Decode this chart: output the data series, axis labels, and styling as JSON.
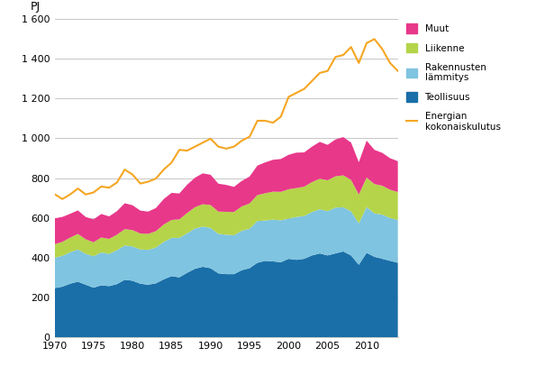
{
  "years": [
    1970,
    1971,
    1972,
    1973,
    1974,
    1975,
    1976,
    1977,
    1978,
    1979,
    1980,
    1981,
    1982,
    1983,
    1984,
    1985,
    1986,
    1987,
    1988,
    1989,
    1990,
    1991,
    1992,
    1993,
    1994,
    1995,
    1996,
    1997,
    1998,
    1999,
    2000,
    2001,
    2002,
    2003,
    2004,
    2005,
    2006,
    2007,
    2008,
    2009,
    2010,
    2011,
    2012,
    2013,
    2014
  ],
  "teollisuus": [
    248,
    255,
    270,
    280,
    265,
    250,
    262,
    258,
    268,
    290,
    285,
    270,
    265,
    272,
    292,
    308,
    302,
    325,
    345,
    355,
    348,
    322,
    318,
    318,
    338,
    348,
    375,
    385,
    382,
    378,
    395,
    390,
    395,
    412,
    422,
    412,
    422,
    432,
    412,
    365,
    425,
    405,
    395,
    385,
    375
  ],
  "rakennusten_lammitys": [
    152,
    155,
    158,
    162,
    155,
    158,
    165,
    162,
    170,
    172,
    172,
    172,
    175,
    180,
    188,
    192,
    198,
    198,
    202,
    202,
    202,
    198,
    198,
    195,
    198,
    198,
    210,
    202,
    210,
    210,
    202,
    215,
    215,
    218,
    222,
    222,
    230,
    222,
    222,
    208,
    230,
    218,
    222,
    215,
    215
  ],
  "liikenne": [
    68,
    70,
    73,
    78,
    73,
    70,
    75,
    75,
    78,
    82,
    82,
    80,
    80,
    82,
    87,
    90,
    93,
    102,
    107,
    112,
    115,
    112,
    115,
    117,
    122,
    127,
    130,
    137,
    140,
    143,
    147,
    145,
    147,
    150,
    153,
    155,
    157,
    160,
    157,
    145,
    148,
    147,
    145,
    142,
    140
  ],
  "muut": [
    130,
    125,
    120,
    118,
    112,
    115,
    118,
    113,
    118,
    130,
    125,
    115,
    112,
    116,
    128,
    136,
    130,
    142,
    148,
    155,
    152,
    140,
    135,
    126,
    128,
    135,
    148,
    155,
    160,
    165,
    173,
    178,
    172,
    178,
    185,
    178,
    185,
    192,
    188,
    162,
    185,
    172,
    165,
    158,
    155
  ],
  "kokonaiskulutus": [
    720,
    695,
    718,
    748,
    718,
    728,
    758,
    752,
    778,
    843,
    818,
    773,
    782,
    798,
    843,
    878,
    942,
    938,
    958,
    978,
    998,
    958,
    948,
    958,
    988,
    1008,
    1088,
    1088,
    1078,
    1108,
    1208,
    1228,
    1248,
    1288,
    1328,
    1338,
    1408,
    1418,
    1458,
    1378,
    1478,
    1498,
    1448,
    1378,
    1338
  ],
  "colors": {
    "teollisuus": "#1a6fa8",
    "rakennusten_lammitys": "#7fc4e0",
    "liikenne": "#b5d44a",
    "muut": "#e8388a",
    "kokonaiskulutus": "#f5a623"
  },
  "ylabel_text": "PJ",
  "ylim": [
    0,
    1600
  ],
  "yticks": [
    0,
    200,
    400,
    600,
    800,
    1000,
    1200,
    1400,
    1600
  ],
  "ytick_labels": [
    "0",
    "200",
    "400",
    "600",
    "800",
    "1 000",
    "1 200",
    "1 400",
    "1 600"
  ],
  "xlim": [
    1970,
    2014
  ],
  "xticks": [
    1970,
    1975,
    1980,
    1985,
    1990,
    1995,
    2000,
    2005,
    2010
  ]
}
